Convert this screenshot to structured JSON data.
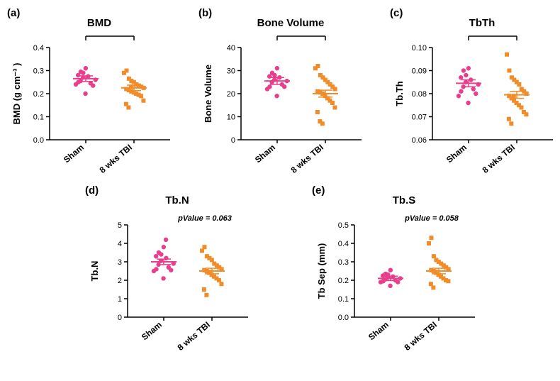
{
  "colors": {
    "sham": "#e83e8c",
    "tbi": "#f28c28",
    "axis": "#000000",
    "bg": "#ffffff"
  },
  "typography": {
    "panel_label_size": 15,
    "title_size": 15,
    "tick_size": 11,
    "axis_title_size": 13,
    "x_cat_size": 12,
    "ann_size": 11
  },
  "x_categories": [
    "Sham",
    "8 wks TBI"
  ],
  "charts": [
    {
      "id": "a",
      "label": "(a)",
      "title": "BMD",
      "ylabel": "BMD (g cm⁻³ )",
      "ylim": [
        0.0,
        0.4
      ],
      "ytick_step": 0.1,
      "decimals": 1,
      "annotation": "*",
      "ann_style": "asterisk",
      "groups": [
        {
          "name": "Sham",
          "marker": "circle",
          "color": "#e83e8c",
          "mean": 0.265,
          "sem": 0.012,
          "points": [
            0.24,
            0.25,
            0.295,
            0.29,
            0.31,
            0.275,
            0.245,
            0.235,
            0.26,
            0.28,
            0.255,
            0.27,
            0.2
          ]
        },
        {
          "name": "8 wks TBI",
          "marker": "square",
          "color": "#f28c28",
          "mean": 0.225,
          "sem": 0.012,
          "points": [
            0.29,
            0.3,
            0.265,
            0.255,
            0.25,
            0.24,
            0.235,
            0.23,
            0.225,
            0.22,
            0.215,
            0.21,
            0.205,
            0.2,
            0.195,
            0.19,
            0.17,
            0.155,
            0.14,
            0.23
          ]
        }
      ]
    },
    {
      "id": "b",
      "label": "(b)",
      "title": "Bone Volume",
      "ylabel": "Bone Volume",
      "ylim": [
        0,
        40
      ],
      "ytick_step": 10,
      "decimals": 0,
      "annotation": "*",
      "ann_style": "asterisk",
      "groups": [
        {
          "name": "Sham",
          "marker": "circle",
          "color": "#e83e8c",
          "mean": 25.5,
          "sem": 1.5,
          "points": [
            22,
            23,
            29,
            28,
            31,
            27,
            24,
            23,
            25.5,
            27.5,
            25,
            26,
            19
          ]
        },
        {
          "name": "8 wks TBI",
          "marker": "square",
          "color": "#f28c28",
          "mean": 20.0,
          "sem": 1.5,
          "points": [
            31,
            32,
            28,
            27,
            26,
            25,
            24,
            23,
            22,
            21,
            20.5,
            20,
            19,
            18,
            17,
            16,
            14,
            12,
            8,
            7
          ]
        }
      ]
    },
    {
      "id": "c",
      "label": "(c)",
      "title": "TbTh",
      "ylabel": "Tb.Th",
      "ylim": [
        0.06,
        0.1
      ],
      "ytick_step": 0.01,
      "decimals": 2,
      "annotation": "*",
      "ann_style": "asterisk",
      "groups": [
        {
          "name": "Sham",
          "marker": "circle",
          "color": "#e83e8c",
          "mean": 0.0845,
          "sem": 0.0015,
          "points": [
            0.079,
            0.081,
            0.09,
            0.088,
            0.091,
            0.086,
            0.082,
            0.08,
            0.084,
            0.087,
            0.083,
            0.085,
            0.076
          ]
        },
        {
          "name": "8 wks TBI",
          "marker": "square",
          "color": "#f28c28",
          "mean": 0.0795,
          "sem": 0.0015,
          "points": [
            0.097,
            0.09,
            0.087,
            0.086,
            0.085,
            0.084,
            0.082,
            0.081,
            0.08,
            0.079,
            0.078,
            0.077,
            0.076,
            0.075,
            0.074,
            0.072,
            0.071,
            0.069,
            0.067,
            0.079
          ]
        }
      ]
    },
    {
      "id": "d",
      "label": "(d)",
      "title": "Tb.N",
      "ylabel": "Tb.N",
      "ylim": [
        0,
        5
      ],
      "ytick_step": 1,
      "decimals": 0,
      "annotation": "pValue  = 0.063",
      "ann_style": "pvalue",
      "groups": [
        {
          "name": "Sham",
          "marker": "circle",
          "color": "#e83e8c",
          "mean": 3.0,
          "sem": 0.15,
          "points": [
            2.5,
            2.6,
            3.5,
            3.4,
            3.8,
            3.2,
            2.7,
            2.55,
            2.9,
            3.3,
            2.85,
            3.05,
            2.1,
            4.2
          ]
        },
        {
          "name": "8 wks TBI",
          "marker": "square",
          "color": "#f28c28",
          "mean": 2.5,
          "sem": 0.15,
          "points": [
            3.6,
            3.8,
            3.3,
            3.2,
            3.1,
            2.9,
            2.8,
            2.7,
            2.6,
            2.55,
            2.5,
            2.4,
            2.3,
            2.2,
            2.1,
            2.0,
            1.8,
            1.5,
            1.2,
            2.45
          ]
        }
      ]
    },
    {
      "id": "e",
      "label": "(e)",
      "title": "Tb.S",
      "ylabel": "Tb Sep (mm)",
      "ylim": [
        0.0,
        0.5
      ],
      "ytick_step": 0.1,
      "decimals": 1,
      "annotation": "pValue  = 0.058",
      "ann_style": "pvalue",
      "groups": [
        {
          "name": "Sham",
          "marker": "circle",
          "color": "#e83e8c",
          "mean": 0.21,
          "sem": 0.012,
          "points": [
            0.19,
            0.195,
            0.235,
            0.23,
            0.255,
            0.22,
            0.2,
            0.19,
            0.21,
            0.225,
            0.205,
            0.215,
            0.17
          ]
        },
        {
          "name": "8 wks TBI",
          "marker": "square",
          "color": "#f28c28",
          "mean": 0.25,
          "sem": 0.015,
          "points": [
            0.4,
            0.43,
            0.33,
            0.31,
            0.3,
            0.29,
            0.28,
            0.27,
            0.26,
            0.255,
            0.25,
            0.24,
            0.23,
            0.22,
            0.21,
            0.2,
            0.195,
            0.18,
            0.16,
            0.245
          ]
        }
      ]
    }
  ]
}
